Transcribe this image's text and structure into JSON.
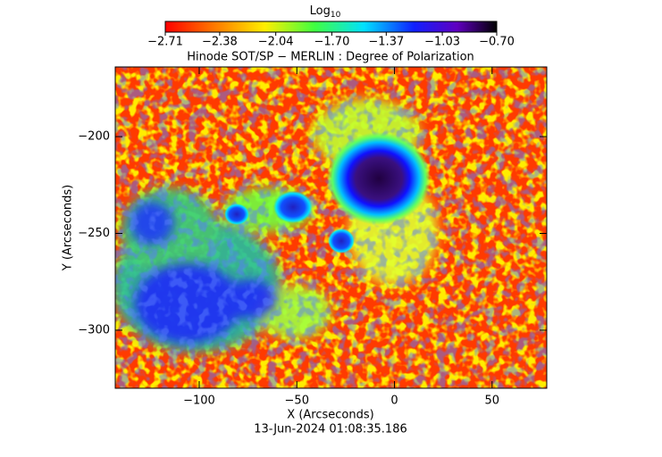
{
  "chart_data": {
    "type": "heatmap",
    "title": "Hinode SOT/SP − MERLIN : Degree of Polarization",
    "colorbar_title": {
      "text": "Log",
      "subscript": "10"
    },
    "clim": [
      -2.71,
      -0.7
    ],
    "cticks": [
      {
        "value": -2.71,
        "label": "−2.71"
      },
      {
        "value": -2.38,
        "label": "−2.38"
      },
      {
        "value": -2.04,
        "label": "−2.04"
      },
      {
        "value": -1.7,
        "label": "−1.70"
      },
      {
        "value": -1.37,
        "label": "−1.37"
      },
      {
        "value": -1.03,
        "label": "−1.03"
      },
      {
        "value": -0.7,
        "label": "−0.70"
      }
    ],
    "xlabel": "X (Arcseconds)",
    "ylabel": "Y (Arcseconds)",
    "xlim": [
      -143,
      78
    ],
    "ylim": [
      -330,
      -164
    ],
    "xticks": [
      {
        "value": -100,
        "label": "−100"
      },
      {
        "value": -50,
        "label": "−50"
      },
      0,
      50
    ],
    "yticks": [
      {
        "value": -300,
        "label": "−300"
      },
      {
        "value": -250,
        "label": "−250"
      },
      {
        "value": -200,
        "label": "−200"
      }
    ],
    "footer": "13-Jun-2024 01:08:35.186"
  }
}
